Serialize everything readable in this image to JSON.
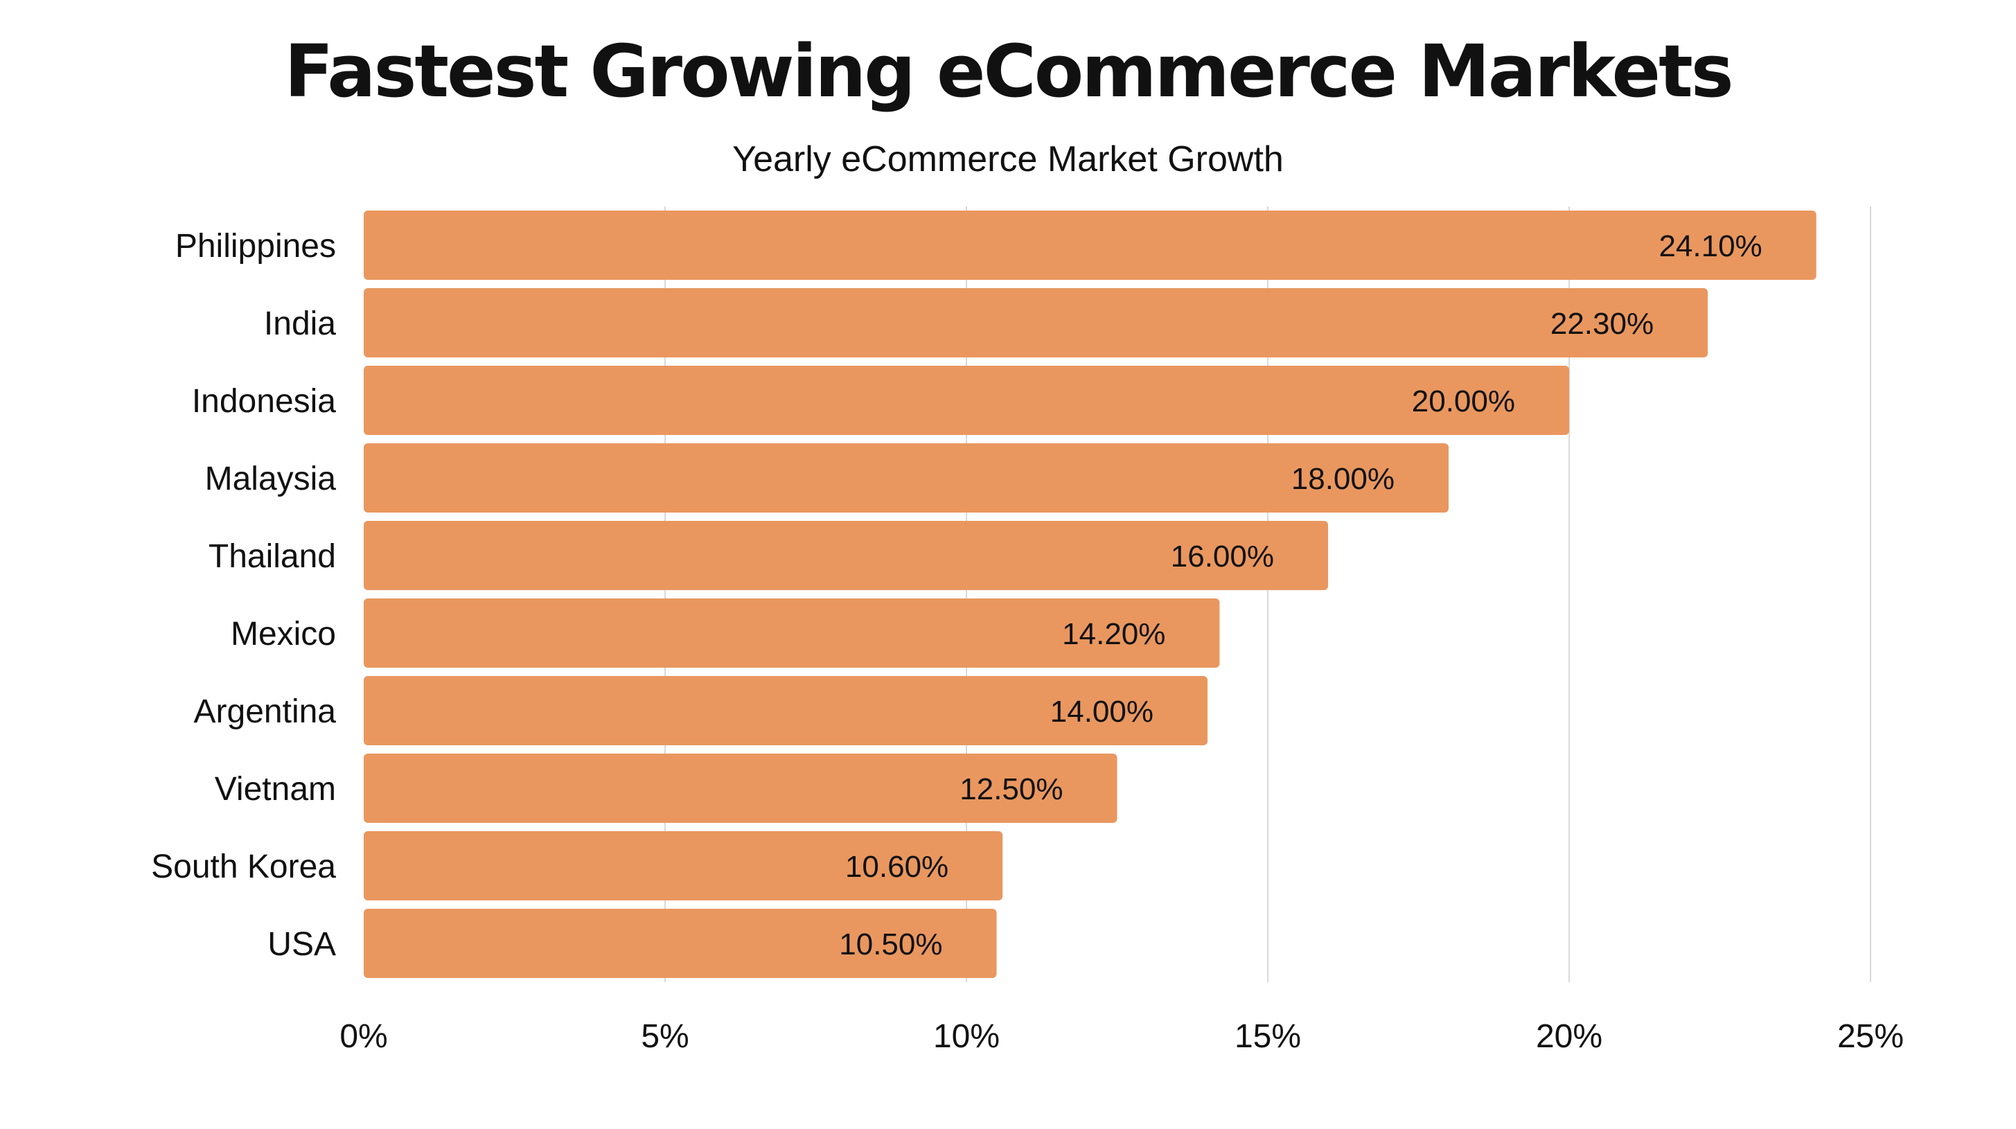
{
  "chart_data": {
    "type": "bar",
    "orientation": "horizontal",
    "title": "Fastest Growing eCommerce Markets",
    "subtitle": "Yearly eCommerce Market Growth",
    "xlabel": "",
    "ylabel": "",
    "categories": [
      "Philippines",
      "India",
      "Indonesia",
      "Malaysia",
      "Thailand",
      "Mexico",
      "Argentina",
      "Vietnam",
      "South Korea",
      "USA"
    ],
    "values": [
      24.1,
      22.3,
      20.0,
      18.0,
      16.0,
      14.2,
      14.0,
      12.5,
      10.6,
      10.5
    ],
    "value_labels": [
      "24.10%",
      "22.30%",
      "20.00%",
      "18.00%",
      "16.00%",
      "14.20%",
      "14.00%",
      "12.50%",
      "10.60%",
      "10.50%"
    ],
    "xlim": [
      0,
      25
    ],
    "x_ticks": [
      0,
      5,
      10,
      15,
      20,
      25
    ],
    "x_tick_labels": [
      "0%",
      "5%",
      "10%",
      "15%",
      "20%",
      "25%"
    ],
    "grid": "vertical",
    "legend": "none",
    "bar_color": "#E9975F",
    "gridline_color": "#d9d9d9"
  }
}
